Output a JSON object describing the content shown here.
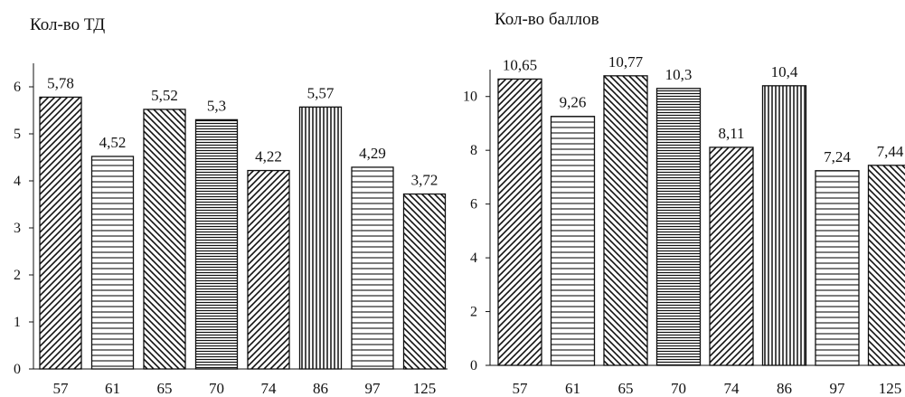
{
  "chart_data": [
    {
      "type": "bar",
      "title": "Кол-во ТД",
      "categories": [
        "57",
        "61",
        "65",
        "70",
        "74",
        "86",
        "97",
        "125"
      ],
      "values": [
        5.78,
        4.52,
        5.52,
        5.3,
        4.22,
        5.57,
        4.29,
        3.72
      ],
      "data_labels": [
        "5,78",
        "4,52",
        "5,52",
        "5,3",
        "4,22",
        "5,57",
        "4,29",
        "3,72"
      ],
      "patterns": [
        "diag-right",
        "horizontal",
        "diag-left",
        "horizontal-dense",
        "diag-right",
        "vertical",
        "horizontal",
        "diag-left"
      ],
      "yticks": [
        "0",
        "1",
        "2",
        "3",
        "4",
        "5",
        "6"
      ],
      "ylim": [
        0,
        6.5
      ],
      "grid": false,
      "legend": "none"
    },
    {
      "type": "bar",
      "title": "Кол-во баллов",
      "categories": [
        "57",
        "61",
        "65",
        "70",
        "74",
        "86",
        "97",
        "125"
      ],
      "values": [
        10.65,
        9.26,
        10.77,
        10.3,
        8.11,
        10.4,
        7.24,
        7.44
      ],
      "data_labels": [
        "10,65",
        "9,26",
        "10,77",
        "10,3",
        "8,11",
        "10,4",
        "7,24",
        "7,44"
      ],
      "patterns": [
        "diag-right",
        "horizontal",
        "diag-left",
        "horizontal-dense",
        "diag-right",
        "vertical",
        "horizontal",
        "diag-left"
      ],
      "yticks": [
        "0",
        "2",
        "4",
        "6",
        "8",
        "10"
      ],
      "ylim": [
        0,
        11
      ],
      "grid": false,
      "legend": "none"
    }
  ]
}
